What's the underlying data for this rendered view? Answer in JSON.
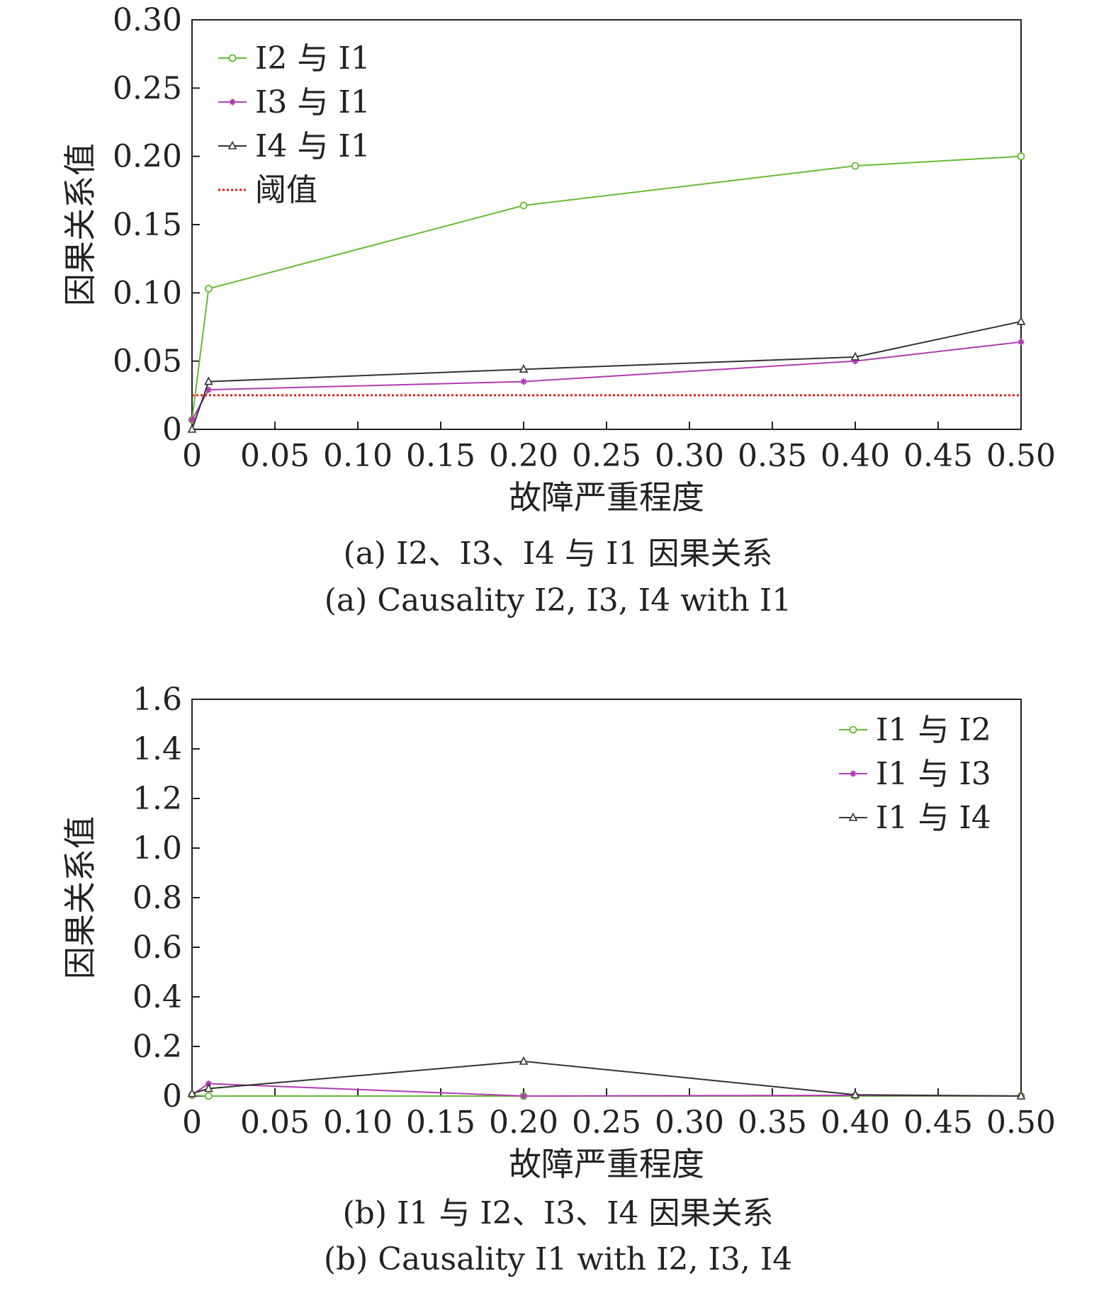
{
  "chart_data": [
    {
      "type": "line",
      "xlabel": "故障严重程度",
      "ylabel": "因果关系值",
      "xlim": [
        0,
        0.5
      ],
      "ylim": [
        0,
        0.3
      ],
      "x_ticks": [
        0,
        0.05,
        0.1,
        0.15,
        0.2,
        0.25,
        0.3,
        0.35,
        0.4,
        0.45,
        0.5
      ],
      "x_tick_labels": [
        "0",
        "0.05",
        "0.10",
        "0.15",
        "0.20",
        "0.25",
        "0.30",
        "0.35",
        "0.40",
        "0.45",
        "0.50"
      ],
      "y_ticks": [
        0,
        0.05,
        0.1,
        0.15,
        0.2,
        0.25,
        0.3
      ],
      "y_tick_labels": [
        "0",
        "0.05",
        "0.10",
        "0.15",
        "0.20",
        "0.25",
        "0.30"
      ],
      "legend_position": "top-left",
      "grid": false,
      "series": [
        {
          "name": "I2 与 I1",
          "color": "#66bb33",
          "marker": "circle",
          "x": [
            0,
            0.01,
            0.2,
            0.4,
            0.5
          ],
          "y": [
            0.007,
            0.103,
            0.164,
            0.193,
            0.2
          ]
        },
        {
          "name": "I3 与 I1",
          "color": "#b03cb0",
          "marker": "star",
          "x": [
            0,
            0.01,
            0.2,
            0.4,
            0.5
          ],
          "y": [
            0.007,
            0.029,
            0.035,
            0.05,
            0.064
          ]
        },
        {
          "name": "I4 与 I1",
          "color": "#333333",
          "marker": "triangle",
          "x": [
            0,
            0.01,
            0.2,
            0.4,
            0.5
          ],
          "y": [
            0.0,
            0.035,
            0.044,
            0.053,
            0.079
          ]
        },
        {
          "name": "阈值",
          "color": "#e02020",
          "marker": "none",
          "dashed": true,
          "x": [
            0,
            0.5
          ],
          "y": [
            0.025,
            0.025
          ]
        }
      ]
    },
    {
      "type": "line",
      "xlabel": "故障严重程度",
      "ylabel": "因果关系值",
      "xlim": [
        0,
        0.5
      ],
      "ylim": [
        0,
        1.6
      ],
      "x_ticks": [
        0,
        0.05,
        0.1,
        0.15,
        0.2,
        0.25,
        0.3,
        0.35,
        0.4,
        0.45,
        0.5
      ],
      "x_tick_labels": [
        "0",
        "0.05",
        "0.10",
        "0.15",
        "0.20",
        "0.25",
        "0.30",
        "0.35",
        "0.40",
        "0.45",
        "0.50"
      ],
      "y_ticks": [
        0,
        0.2,
        0.4,
        0.6,
        0.8,
        1.0,
        1.2,
        1.4,
        1.6
      ],
      "y_tick_labels": [
        "0",
        "0.2",
        "0.4",
        "0.6",
        "0.8",
        "1.0",
        "1.2",
        "1.4",
        "1.6"
      ],
      "legend_position": "top-right",
      "grid": false,
      "series": [
        {
          "name": "I1 与 I2",
          "color": "#66bb33",
          "marker": "circle",
          "x": [
            0,
            0.01,
            0.2,
            0.4,
            0.5
          ],
          "y": [
            0.003,
            0.0,
            0.0,
            0.0,
            0.0
          ]
        },
        {
          "name": "I1 与 I3",
          "color": "#b03cb0",
          "marker": "star",
          "x": [
            0,
            0.01,
            0.2,
            0.4,
            0.5
          ],
          "y": [
            0.005,
            0.05,
            0.0,
            0.003,
            0.0
          ]
        },
        {
          "name": "I1 与 I4",
          "color": "#333333",
          "marker": "triangle",
          "x": [
            0,
            0.01,
            0.2,
            0.4,
            0.5
          ],
          "y": [
            0.01,
            0.03,
            0.14,
            0.005,
            0.0
          ]
        }
      ]
    }
  ],
  "captions": {
    "a_cn": "(a) I2、I3、I4 与 I1 因果关系",
    "a_en": "(a) Causality I2, I3, I4 with I1",
    "b_cn": "(b) I1 与 I2、I3、I4 因果关系",
    "b_en": "(b) Causality I1 with I2, I3, I4"
  }
}
